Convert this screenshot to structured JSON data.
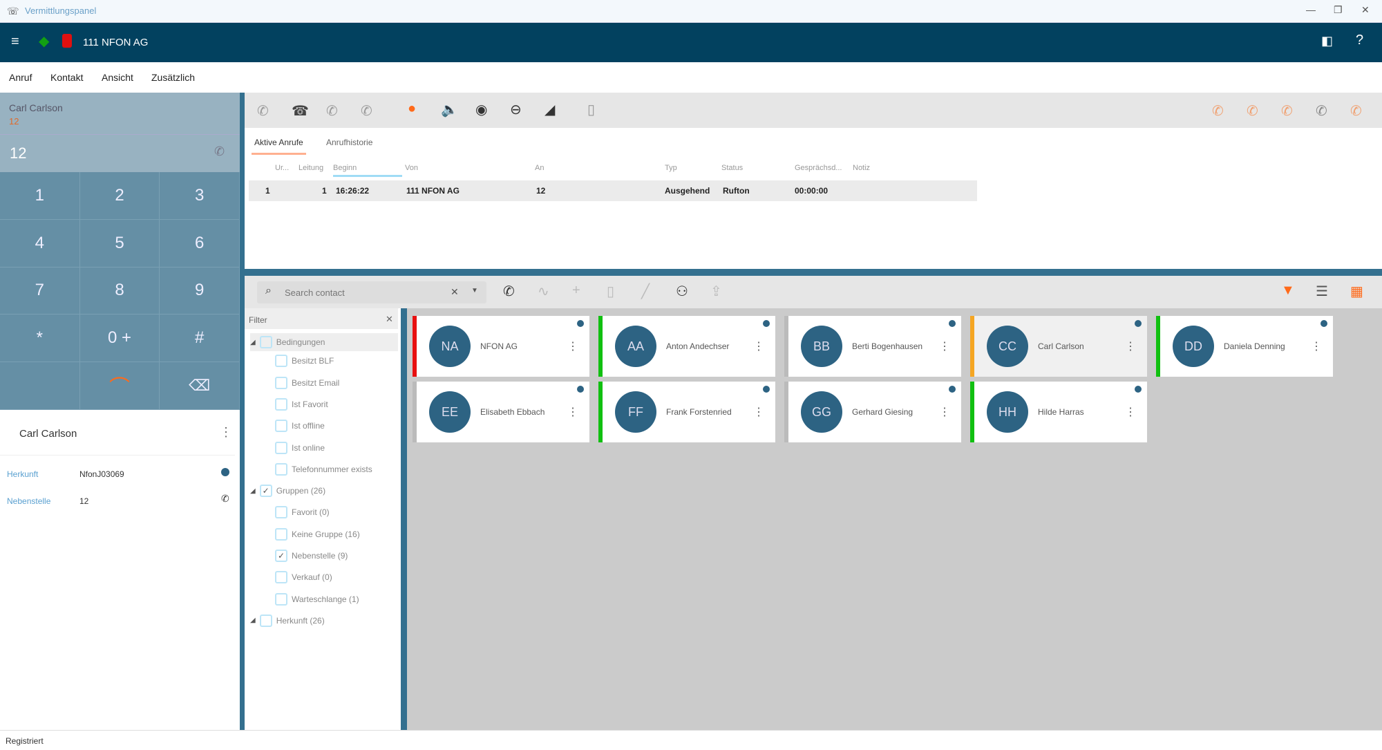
{
  "window": {
    "title": "Vermittlungspanel",
    "controls": [
      "—",
      "❐",
      "✕"
    ]
  },
  "header": {
    "account": "111 NFON AG",
    "status_icon_color": "#12a012",
    "alert_icon_color": "#e01010"
  },
  "menu": [
    "Anruf",
    "Kontakt",
    "Ansicht",
    "Zusätzlich"
  ],
  "caller": {
    "name": "Carl Carlson",
    "extension": "12",
    "number": "12"
  },
  "keypad": [
    "1",
    "2",
    "3",
    "4",
    "5",
    "6",
    "7",
    "8",
    "9",
    "*",
    "0 +",
    "#"
  ],
  "contact_detail": {
    "name": "Carl Carlson",
    "fields": [
      {
        "label": "Herkunft",
        "value": "NfonJ03069"
      },
      {
        "label": "Nebenstelle",
        "value": "12"
      }
    ]
  },
  "call_tabs": [
    "Aktive Anrufe",
    "Anrufhistorie"
  ],
  "call_table": {
    "headers": [
      "Ur...",
      "Leitung",
      "Beginn",
      "Von",
      "An",
      "Typ",
      "Status",
      "Gesprächsd...",
      "Notiz"
    ],
    "rows": [
      [
        "1",
        "1",
        "16:26:22",
        "111 NFON AG",
        "12",
        "Ausgehend",
        "Rufton",
        "00:00:00",
        ""
      ]
    ]
  },
  "search": {
    "placeholder": "Search contact"
  },
  "filter": {
    "title": "Filter",
    "items": [
      {
        "label": "Bedingungen",
        "checked": false,
        "level": 0
      },
      {
        "label": "Besitzt BLF",
        "checked": false,
        "level": 1
      },
      {
        "label": "Besitzt Email",
        "checked": false,
        "level": 1
      },
      {
        "label": "Ist Favorit",
        "checked": false,
        "level": 1
      },
      {
        "label": "Ist offline",
        "checked": false,
        "level": 1
      },
      {
        "label": "Ist online",
        "checked": false,
        "level": 1
      },
      {
        "label": "Telefonnummer exists",
        "checked": false,
        "level": 1
      },
      {
        "label": "Gruppen (26)",
        "checked": true,
        "level": 0
      },
      {
        "label": "Favorit (0)",
        "checked": false,
        "level": 1
      },
      {
        "label": "Keine Gruppe (16)",
        "checked": false,
        "level": 1
      },
      {
        "label": "Nebenstelle (9)",
        "checked": true,
        "level": 1
      },
      {
        "label": "Verkauf (0)",
        "checked": false,
        "level": 1
      },
      {
        "label": "Warteschlange (1)",
        "checked": false,
        "level": 1
      },
      {
        "label": "Herkunft (26)",
        "checked": false,
        "level": 0
      }
    ]
  },
  "contacts": [
    {
      "initials": "NA",
      "name": "NFON AG",
      "status_color": "#e81010"
    },
    {
      "initials": "AA",
      "name": "Anton Andechser",
      "status_color": "#10c010"
    },
    {
      "initials": "BB",
      "name": "Berti Bogenhausen",
      "status_color": "#bbbbbb"
    },
    {
      "initials": "CC",
      "name": "Carl Carlson",
      "status_color": "#f5a623"
    },
    {
      "initials": "DD",
      "name": "Daniela Denning",
      "status_color": "#10c010"
    },
    {
      "initials": "EE",
      "name": "Elisabeth Ebbach",
      "status_color": "#bbbbbb"
    },
    {
      "initials": "FF",
      "name": "Frank Forstenried",
      "status_color": "#10c010"
    },
    {
      "initials": "GG",
      "name": "Gerhard Giesing",
      "status_color": "#bbbbbb"
    },
    {
      "initials": "HH",
      "name": "Hilde Harras",
      "status_color": "#10c010"
    }
  ],
  "statusbar": {
    "text": "Registriert"
  },
  "colors": {
    "accent": "#ff6a1a",
    "header": "#02415f",
    "divider": "#34708f"
  }
}
